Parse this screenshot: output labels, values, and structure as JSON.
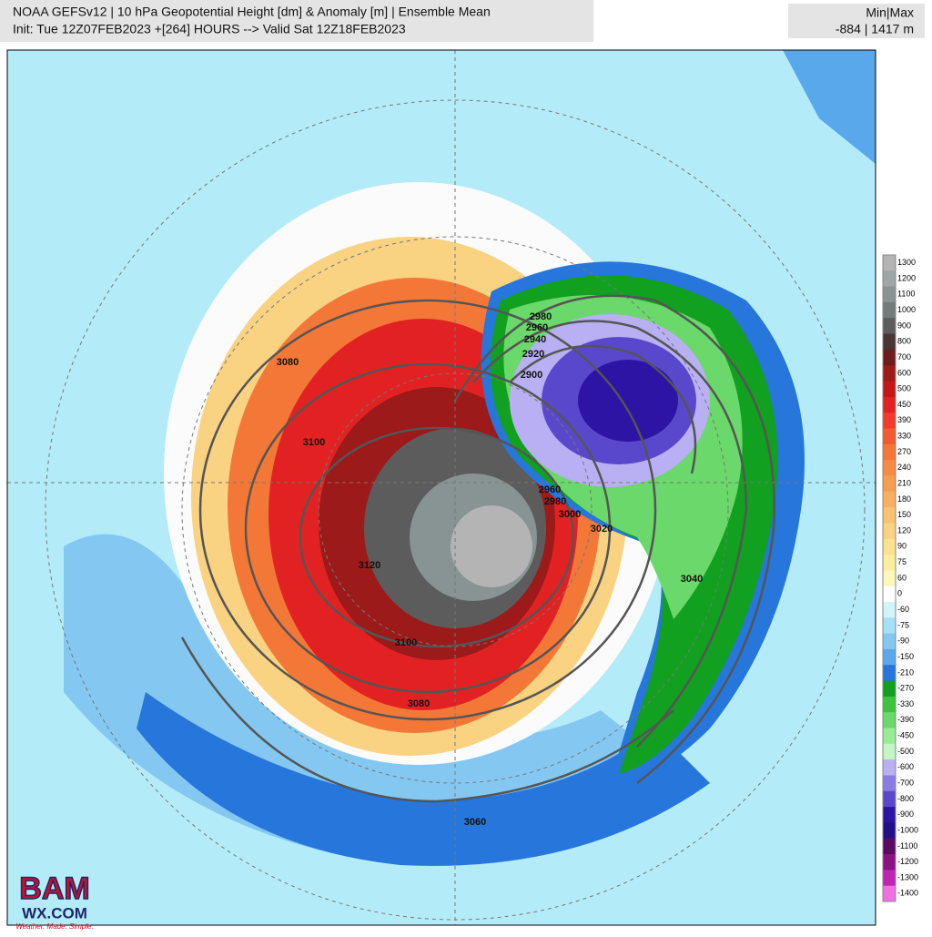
{
  "header": {
    "title": "NOAA GEFSv12 | 10 hPa Geopotential Height [dm] & Anomaly [m] | Ensemble Mean",
    "subtitle": "Init: Tue 12Z07FEB2023 +[264] HOURS --> Valid Sat 12Z18FEB2023"
  },
  "minmax": {
    "title": "Min|Max",
    "value": "-884 | 1417 m"
  },
  "colorbar": {
    "labels": [
      1300,
      1200,
      1100,
      1000,
      900,
      800,
      700,
      600,
      500,
      450,
      390,
      330,
      270,
      240,
      210,
      180,
      150,
      120,
      90,
      75,
      60,
      0,
      -60,
      -75,
      -90,
      -150,
      -210,
      -270,
      -330,
      -390,
      -450,
      -500,
      -600,
      -700,
      -800,
      -900,
      -1000,
      -1100,
      -1200,
      -1300,
      -1400
    ],
    "colors": [
      "#b4b4b4",
      "#9ea6a6",
      "#889393",
      "#737b7b",
      "#5c5c5c",
      "#4a3434",
      "#6e1c1c",
      "#9c1a1a",
      "#c41818",
      "#e22222",
      "#f03c28",
      "#f25a30",
      "#f37838",
      "#f58c42",
      "#f69e50",
      "#f7b060",
      "#f8c272",
      "#f9d282",
      "#fae290",
      "#fbee9c",
      "#fdf8b8",
      "#ffffff",
      "#d2f4fb",
      "#a6e0f8",
      "#84c8f2",
      "#5aa8ec",
      "#2676dc",
      "#12a020",
      "#3cc43c",
      "#6ad86a",
      "#98ec98",
      "#c4f6c4",
      "#b8b0f2",
      "#8a7ce4",
      "#5a48cc",
      "#2e14a4",
      "#22108a",
      "#5a0a62",
      "#8c1284",
      "#c024b4",
      "#f070e4"
    ]
  },
  "contour_labels": [
    "2980",
    "2960",
    "2940",
    "2920",
    "2900",
    "3080",
    "3100",
    "2960",
    "2980",
    "3000",
    "3020",
    "3040",
    "3120",
    "3100",
    "3080",
    "3060"
  ],
  "logo": {
    "name": "BAM",
    "domain": "WX.COM",
    "tagline": "Weather. Made. Simple."
  }
}
